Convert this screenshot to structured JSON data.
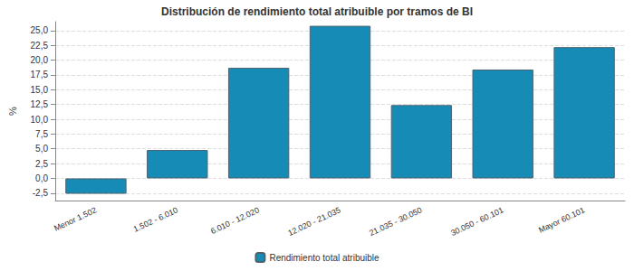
{
  "chart_data": {
    "type": "bar",
    "title": "Distribución de rendimiento total atribuible por tramos de BI",
    "y_label": "%",
    "categories": [
      "Menor 1.502",
      "1.502 - 6.010",
      "6.010 - 12.020",
      "12.020 - 21.035",
      "21.035 - 30.050",
      "30.050 - 60.101",
      "Mayor 60.101"
    ],
    "series": [
      {
        "name": "Rendimiento total atribuible",
        "color": "#168bb5",
        "values": [
          -2.6,
          4.8,
          18.7,
          25.8,
          12.4,
          18.4,
          22.2
        ]
      }
    ],
    "ylim": [
      -3.75,
      26.5
    ],
    "yticks": [
      {
        "value": -2.5,
        "label": "-2,5"
      },
      {
        "value": 0,
        "label": "0,0"
      },
      {
        "value": 2.5,
        "label": "2,5"
      },
      {
        "value": 5,
        "label": "5,0"
      },
      {
        "value": 7.5,
        "label": "7,5"
      },
      {
        "value": 10,
        "label": "10,0"
      },
      {
        "value": 12.5,
        "label": "12,5"
      },
      {
        "value": 15,
        "label": "15,0"
      },
      {
        "value": 17.5,
        "label": "17,5"
      },
      {
        "value": 20,
        "label": "20,0"
      },
      {
        "value": 22.5,
        "label": "22,5"
      },
      {
        "value": 25,
        "label": "25,0"
      }
    ],
    "grid": true,
    "legend": "bottom"
  }
}
